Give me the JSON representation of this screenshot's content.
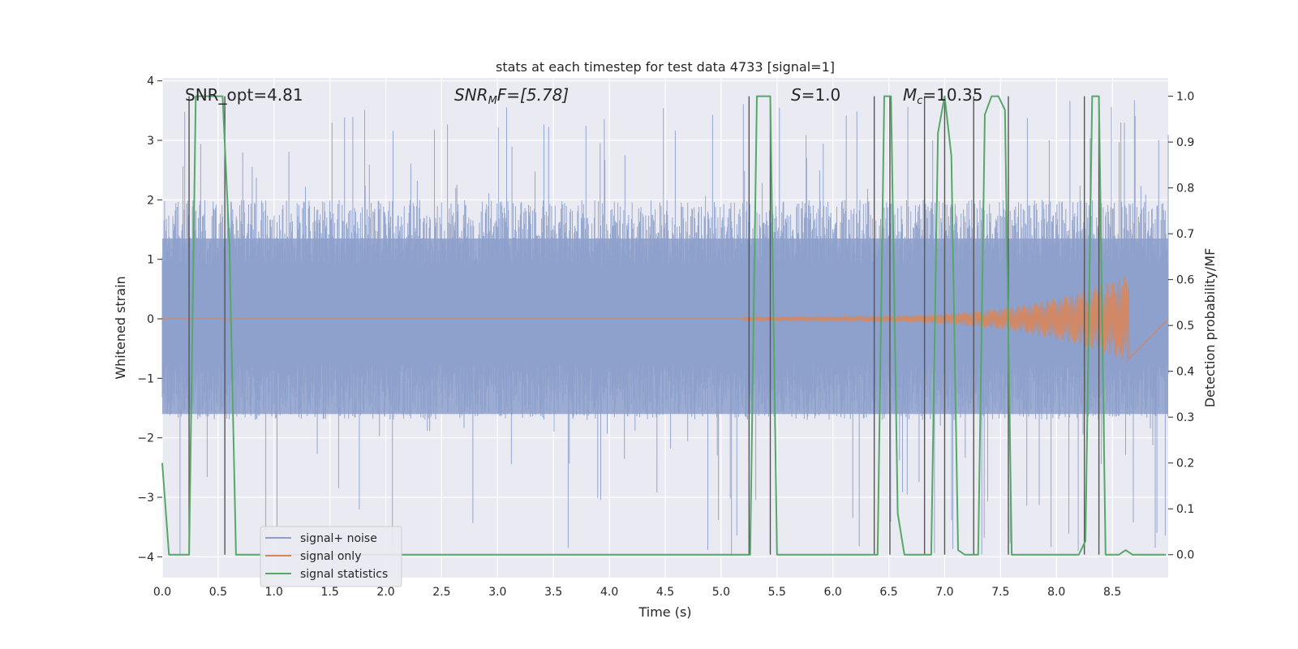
{
  "chart_data": {
    "type": "line",
    "title": "stats at each timestep for test data 4733 [signal=1]",
    "xlabel": "Time (s)",
    "ylabel_left": "Whitened strain",
    "ylabel_right": "Detection probability/MF",
    "xlim": [
      0.0,
      9.0
    ],
    "ylim_left": [
      -4.35,
      4.05
    ],
    "ylim_right": [
      -0.05,
      1.04
    ],
    "x_ticks": [
      0.0,
      0.5,
      1.0,
      1.5,
      2.0,
      2.5,
      3.0,
      3.5,
      4.0,
      4.5,
      5.0,
      5.5,
      6.0,
      6.5,
      7.0,
      7.5,
      8.0,
      8.5
    ],
    "x_tick_labels": [
      "0.0",
      "0.5",
      "1.0",
      "1.5",
      "2.0",
      "2.5",
      "3.0",
      "3.5",
      "4.0",
      "4.5",
      "5.0",
      "5.5",
      "6.0",
      "6.5",
      "7.0",
      "7.5",
      "8.0",
      "8.5"
    ],
    "y_left_ticks": [
      4,
      3,
      2,
      1,
      0,
      -1,
      -2,
      -3,
      -4
    ],
    "y_left_tick_labels": [
      "4",
      "3",
      "2",
      "1",
      "0",
      "−1",
      "−2",
      "−3",
      "−4"
    ],
    "y_right_ticks": [
      1.0,
      0.9,
      0.8,
      0.7,
      0.6,
      0.5,
      0.4,
      0.3,
      0.2,
      0.1,
      0.0
    ],
    "y_right_tick_labels": [
      "1.0",
      "0.9",
      "0.8",
      "0.7",
      "0.6",
      "0.5",
      "0.4",
      "0.3",
      "0.2",
      "0.1",
      "0.0"
    ],
    "annotations": {
      "snr_opt": "SNR_opt=4.81",
      "snr_mf_sym": "SNR",
      "snr_mf_sub": "M",
      "snr_mf_rest": "F=[5.78]",
      "s_sym": "S",
      "s_rest": "=1.0",
      "mc_sym": "M",
      "mc_sub": "c",
      "mc_rest": "=10.35"
    },
    "legend": [
      {
        "name": "signal+ noise",
        "color": "#8da0cb"
      },
      {
        "name": "signal only",
        "color": "#dd8452"
      },
      {
        "name": "signal statistics",
        "color": "#55a868"
      }
    ],
    "series": [
      {
        "name": "signal statistics",
        "axis": "right",
        "x": [
          0.0,
          0.06,
          0.12,
          0.18,
          0.24,
          0.3,
          0.36,
          0.42,
          0.48,
          0.54,
          0.6,
          0.66,
          0.72,
          0.78,
          0.84,
          5.2,
          5.26,
          5.32,
          5.38,
          5.44,
          5.5,
          5.56,
          5.62,
          5.68,
          5.74,
          5.8,
          5.86,
          5.92,
          5.98,
          6.04,
          6.1,
          6.16,
          6.22,
          6.28,
          6.34,
          6.4,
          6.46,
          6.52,
          6.58,
          6.64,
          6.7,
          6.76,
          6.82,
          6.88,
          6.94,
          7.0,
          7.06,
          7.12,
          7.18,
          7.24,
          7.3,
          7.36,
          7.42,
          7.48,
          7.54,
          7.6,
          7.66,
          7.72,
          7.78,
          7.84,
          7.9,
          7.96,
          8.02,
          8.08,
          8.14,
          8.2,
          8.26,
          8.32,
          8.38,
          8.44,
          8.5,
          8.56,
          8.62,
          8.68,
          8.74,
          8.8,
          8.86,
          8.92,
          8.98
        ],
        "y": [
          0.2,
          0.0,
          0.0,
          0.0,
          0.0,
          1.0,
          1.0,
          1.0,
          1.0,
          1.0,
          0.68,
          0.0,
          0.0,
          0.0,
          0.0,
          0.0,
          0.0,
          1.0,
          1.0,
          1.0,
          0.0,
          0.0,
          0.0,
          0.0,
          0.0,
          0.0,
          0.0,
          0.0,
          0.0,
          0.0,
          0.0,
          0.0,
          0.0,
          0.0,
          0.0,
          0.0,
          1.0,
          1.0,
          0.09,
          0.0,
          0.0,
          0.0,
          0.0,
          0.0,
          0.92,
          1.0,
          0.87,
          0.01,
          0.0,
          0.0,
          0.0,
          0.96,
          1.0,
          1.0,
          0.97,
          0.0,
          0.0,
          0.0,
          0.0,
          0.0,
          0.0,
          0.0,
          0.0,
          0.0,
          0.0,
          0.0,
          0.03,
          1.0,
          1.0,
          0.0,
          0.0,
          0.0,
          0.01,
          0.0,
          0.0,
          0.0,
          0.0,
          0.0,
          0.0
        ]
      },
      {
        "name": "signal only",
        "axis": "left",
        "description_values": {
          "start_time": 5.2,
          "end_time": 8.65,
          "max_amplitude": 0.75
        }
      },
      {
        "name": "signal+ noise",
        "axis": "left",
        "description_values": {
          "band_min": -1.7,
          "band_max": 2.0,
          "spike_min": -4.0,
          "spike_max": 3.7
        }
      }
    ],
    "vertical_lines": [
      0.24,
      0.56,
      5.25,
      5.44,
      6.37,
      6.51,
      6.82,
      7.0,
      7.26,
      7.57,
      8.25,
      8.38
    ]
  }
}
